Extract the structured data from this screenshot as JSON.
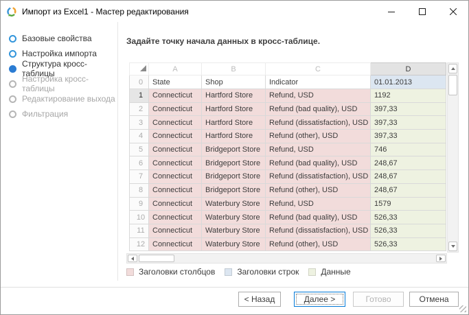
{
  "window": {
    "title": "Импорт из Excel1 - Мастер редактирования"
  },
  "sidebar": {
    "steps": [
      {
        "label": "Базовые свойства",
        "state": "visited"
      },
      {
        "label": "Настройка импорта",
        "state": "visited"
      },
      {
        "label": "Структура кросс-таблицы",
        "state": "current"
      },
      {
        "label": "Настройка кросс-таблицы",
        "state": "pending"
      },
      {
        "label": "Редактирование выхода",
        "state": "pending"
      },
      {
        "label": "Фильтрация",
        "state": "pending"
      }
    ]
  },
  "main": {
    "heading": "Задайте точку начала данных в кросс-таблице.",
    "grid": {
      "col_letters": [
        "A",
        "B",
        "C",
        "D"
      ],
      "selected_col_letter": "D",
      "header_row": {
        "num": "0",
        "cells": [
          "State",
          "Shop",
          "Indicator",
          "01.01.2013"
        ]
      },
      "data_rows": [
        {
          "num": "1",
          "cells": [
            "Connecticut",
            "Hartford Store",
            "Refund, USD",
            "1192"
          ],
          "selected": true
        },
        {
          "num": "2",
          "cells": [
            "Connecticut",
            "Hartford Store",
            "Refund (bad quality), USD",
            "397,33"
          ]
        },
        {
          "num": "3",
          "cells": [
            "Connecticut",
            "Hartford Store",
            "Refund (dissatisfaction), USD",
            "397,33"
          ]
        },
        {
          "num": "4",
          "cells": [
            "Connecticut",
            "Hartford Store",
            "Refund (other), USD",
            "397,33"
          ]
        },
        {
          "num": "5",
          "cells": [
            "Connecticut",
            "Bridgeport Store",
            "Refund, USD",
            "746"
          ]
        },
        {
          "num": "6",
          "cells": [
            "Connecticut",
            "Bridgeport Store",
            "Refund (bad quality), USD",
            "248,67"
          ]
        },
        {
          "num": "7",
          "cells": [
            "Connecticut",
            "Bridgeport Store",
            "Refund (dissatisfaction), USD",
            "248,67"
          ]
        },
        {
          "num": "8",
          "cells": [
            "Connecticut",
            "Bridgeport Store",
            "Refund (other), USD",
            "248,67"
          ]
        },
        {
          "num": "9",
          "cells": [
            "Connecticut",
            "Waterbury Store",
            "Refund, USD",
            "1579"
          ]
        },
        {
          "num": "10",
          "cells": [
            "Connecticut",
            "Waterbury Store",
            "Refund (bad quality), USD",
            "526,33"
          ]
        },
        {
          "num": "11",
          "cells": [
            "Connecticut",
            "Waterbury Store",
            "Refund (dissatisfaction), USD",
            "526,33"
          ]
        },
        {
          "num": "12",
          "cells": [
            "Connecticut",
            "Waterbury Store",
            "Refund (other), USD",
            "526,33"
          ]
        }
      ],
      "selected_cell_value": "1192"
    },
    "legend": {
      "items": [
        {
          "label": "Заголовки столбцов",
          "color": "#f2dcdb"
        },
        {
          "label": "Заголовки строк",
          "color": "#dce6f1"
        },
        {
          "label": "Данные",
          "color": "#eef2e1"
        }
      ]
    }
  },
  "footer": {
    "buttons": [
      {
        "role": "back",
        "label": "< Назад",
        "state": "normal"
      },
      {
        "role": "next",
        "label": "Далее >",
        "state": "focused"
      },
      {
        "role": "finish",
        "label": "Готово",
        "state": "disabled"
      },
      {
        "role": "cancel",
        "label": "Отмена",
        "state": "normal"
      }
    ]
  },
  "colors": {
    "accent_orange": "#e8611c",
    "column_headers_bg": "#f2dcdb",
    "row_headers_bg": "#dce6f1",
    "data_bg": "#eef2e1",
    "step_blue": "#2b7cd3"
  }
}
